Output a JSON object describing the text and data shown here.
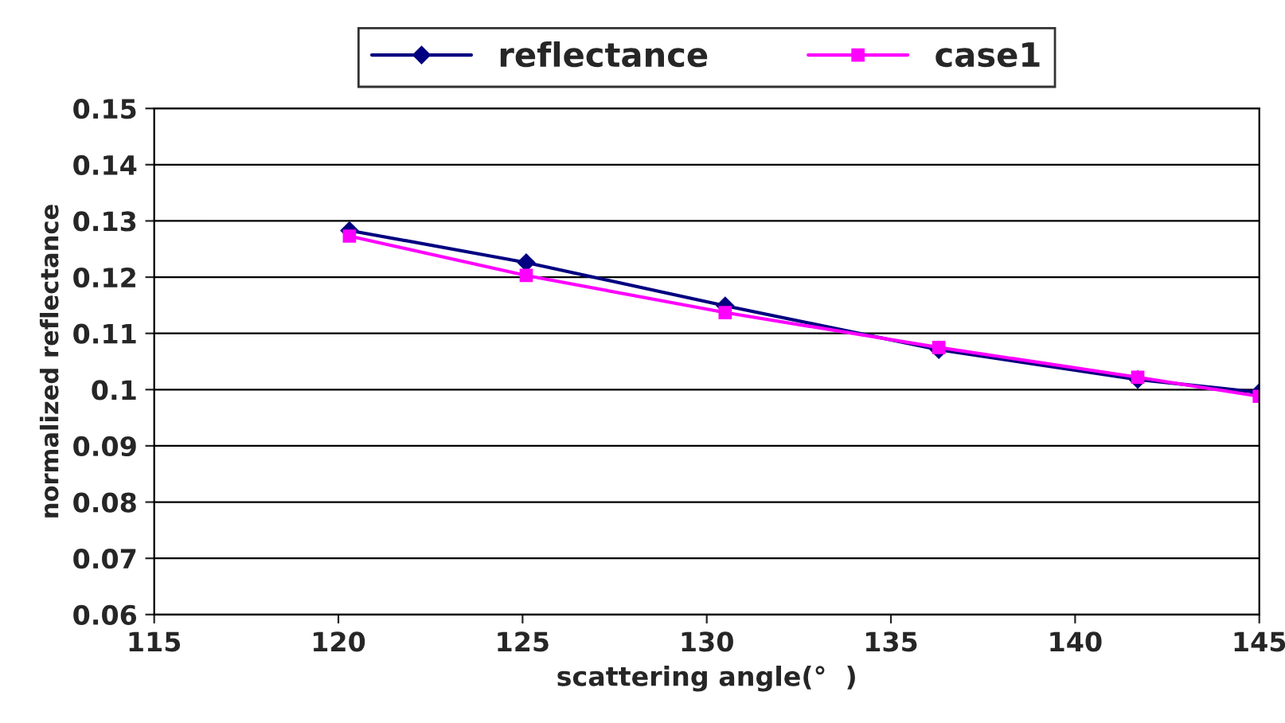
{
  "chart_data": {
    "type": "line",
    "xlabel": "scattering angle(°  )",
    "ylabel": "normalized reflectance",
    "xlim": [
      115,
      145
    ],
    "xticks": [
      115,
      120,
      125,
      130,
      135,
      140,
      145
    ],
    "ylim": [
      0.06,
      0.15
    ],
    "yticks": [
      0.06,
      0.07,
      0.08,
      0.09,
      {
        "value": 0.1,
        "label": "0.1"
      },
      0.11,
      0.12,
      0.13,
      0.14,
      0.15
    ],
    "grid": "y",
    "legend": "top",
    "series": [
      {
        "name": "reflectance",
        "color": "#000080",
        "marker": "diamond",
        "x": [
          120.3,
          125.1,
          130.5,
          136.3,
          141.7,
          145
        ],
        "values": [
          0.1283,
          0.1226,
          0.1149,
          0.1071,
          0.1018,
          0.0995
        ]
      },
      {
        "name": "case1",
        "color": "#ff00ff",
        "marker": "square",
        "x": [
          120.3,
          125.1,
          130.5,
          136.3,
          141.7,
          145
        ],
        "values": [
          0.1273,
          0.1203,
          0.1137,
          0.1075,
          0.1022,
          0.0988
        ]
      }
    ]
  }
}
